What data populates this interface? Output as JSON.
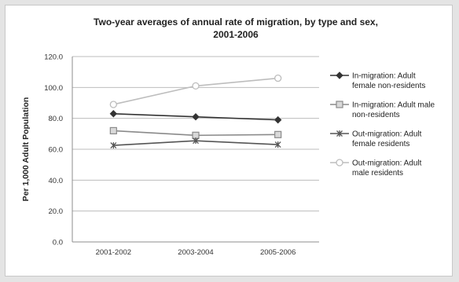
{
  "chart_data": {
    "type": "line",
    "title_line1": "Two-year averages of annual rate of migration, by type and sex,",
    "title_line2": "2001-2006",
    "ylabel": "Per 1,000 Adult Population",
    "xlabel": "",
    "categories": [
      "2001-2002",
      "2003-2004",
      "2005-2006"
    ],
    "ylim": [
      0,
      120
    ],
    "y_ticks": [
      "0.0",
      "20.0",
      "40.0",
      "60.0",
      "80.0",
      "100.0",
      "120.0"
    ],
    "grid": true,
    "legend_position": "right",
    "series": [
      {
        "name_line1": "In-migration: Adult",
        "name_line2": "female non-residents",
        "marker": "diamond",
        "color": "#333333",
        "values": [
          83,
          81,
          79
        ]
      },
      {
        "name_line1": "In-migration: Adult male",
        "name_line2": "non-residents",
        "marker": "square",
        "color": "#8a8a8a",
        "values": [
          72,
          69,
          69.5
        ]
      },
      {
        "name_line1": "Out-migration: Adult",
        "name_line2": "female residents",
        "marker": "x",
        "color": "#555555",
        "values": [
          62.5,
          65.5,
          63
        ]
      },
      {
        "name_line1": "Out-migration: Adult",
        "name_line2": "male residents",
        "marker": "circle",
        "color": "#bdbdbd",
        "values": [
          89,
          101,
          106
        ]
      }
    ]
  }
}
